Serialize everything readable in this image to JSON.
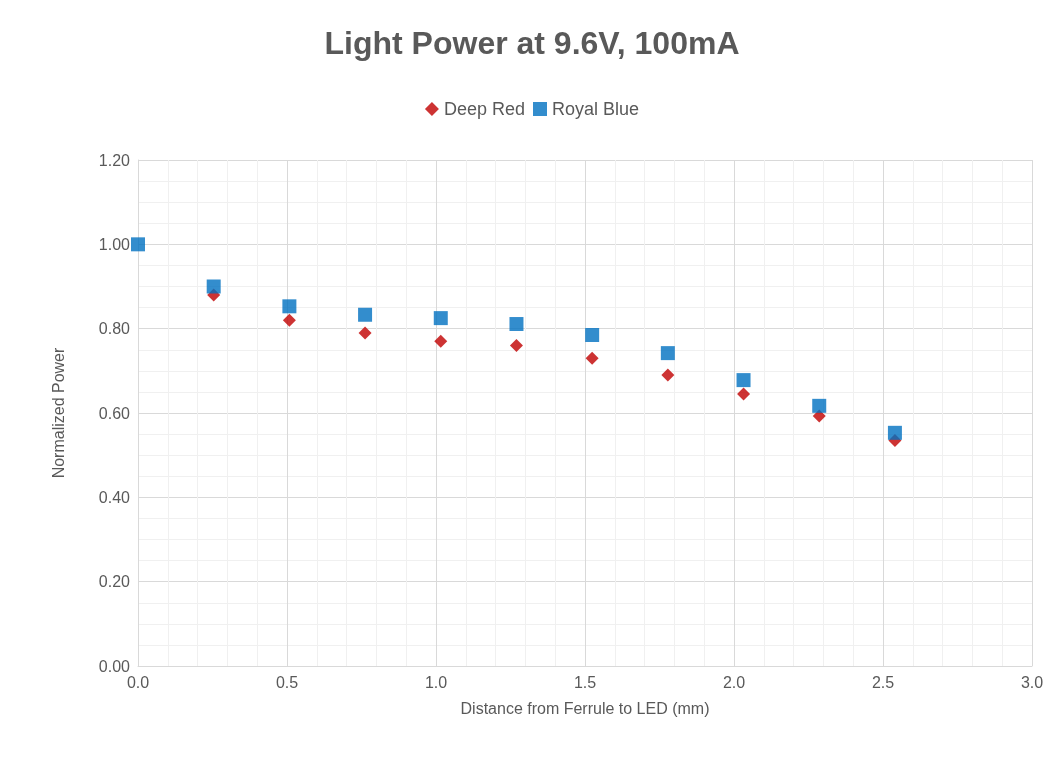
{
  "chart_data": {
    "type": "scatter",
    "title": "Light Power at 9.6V, 100mA",
    "xlabel": "Distance from Ferrule to LED (mm)",
    "ylabel": "Normalized Power",
    "x": [
      0,
      0.254,
      0.508,
      0.762,
      1.016,
      1.27,
      1.524,
      1.778,
      2.032,
      2.286,
      2.54
    ],
    "series": [
      {
        "name": "Deep Red",
        "color": "#c00000",
        "marker": "diamond",
        "values": [
          null,
          0.88,
          0.82,
          0.79,
          0.77,
          0.76,
          0.73,
          0.69,
          0.645,
          0.593,
          0.535
        ]
      },
      {
        "name": "Royal Blue",
        "color": "#0070c0",
        "marker": "square",
        "values": [
          1.0,
          0.9,
          0.853,
          0.833,
          0.825,
          0.811,
          0.785,
          0.742,
          0.678,
          0.617,
          0.553
        ]
      }
    ],
    "xlim": [
      0,
      3
    ],
    "xticks": [
      {
        "value": 0,
        "label": "0.0"
      },
      {
        "value": 0.5,
        "label": "0.5"
      },
      {
        "value": 1,
        "label": "1.0"
      },
      {
        "value": 1.5,
        "label": "1.5"
      },
      {
        "value": 2,
        "label": "2.0"
      },
      {
        "value": 2.5,
        "label": "2.5"
      },
      {
        "value": 3,
        "label": "3.0"
      }
    ],
    "ylim": [
      0,
      1.2
    ],
    "yticks": [
      {
        "value": 0,
        "label": "0.00"
      },
      {
        "value": 0.2,
        "label": "0.20"
      },
      {
        "value": 0.4,
        "label": "0.40"
      },
      {
        "value": 0.6,
        "label": "0.60"
      },
      {
        "value": 0.8,
        "label": "0.80"
      },
      {
        "value": 1,
        "label": "1.00"
      },
      {
        "value": 1.2,
        "label": "1.20"
      }
    ],
    "grid": true,
    "legend": "top"
  }
}
